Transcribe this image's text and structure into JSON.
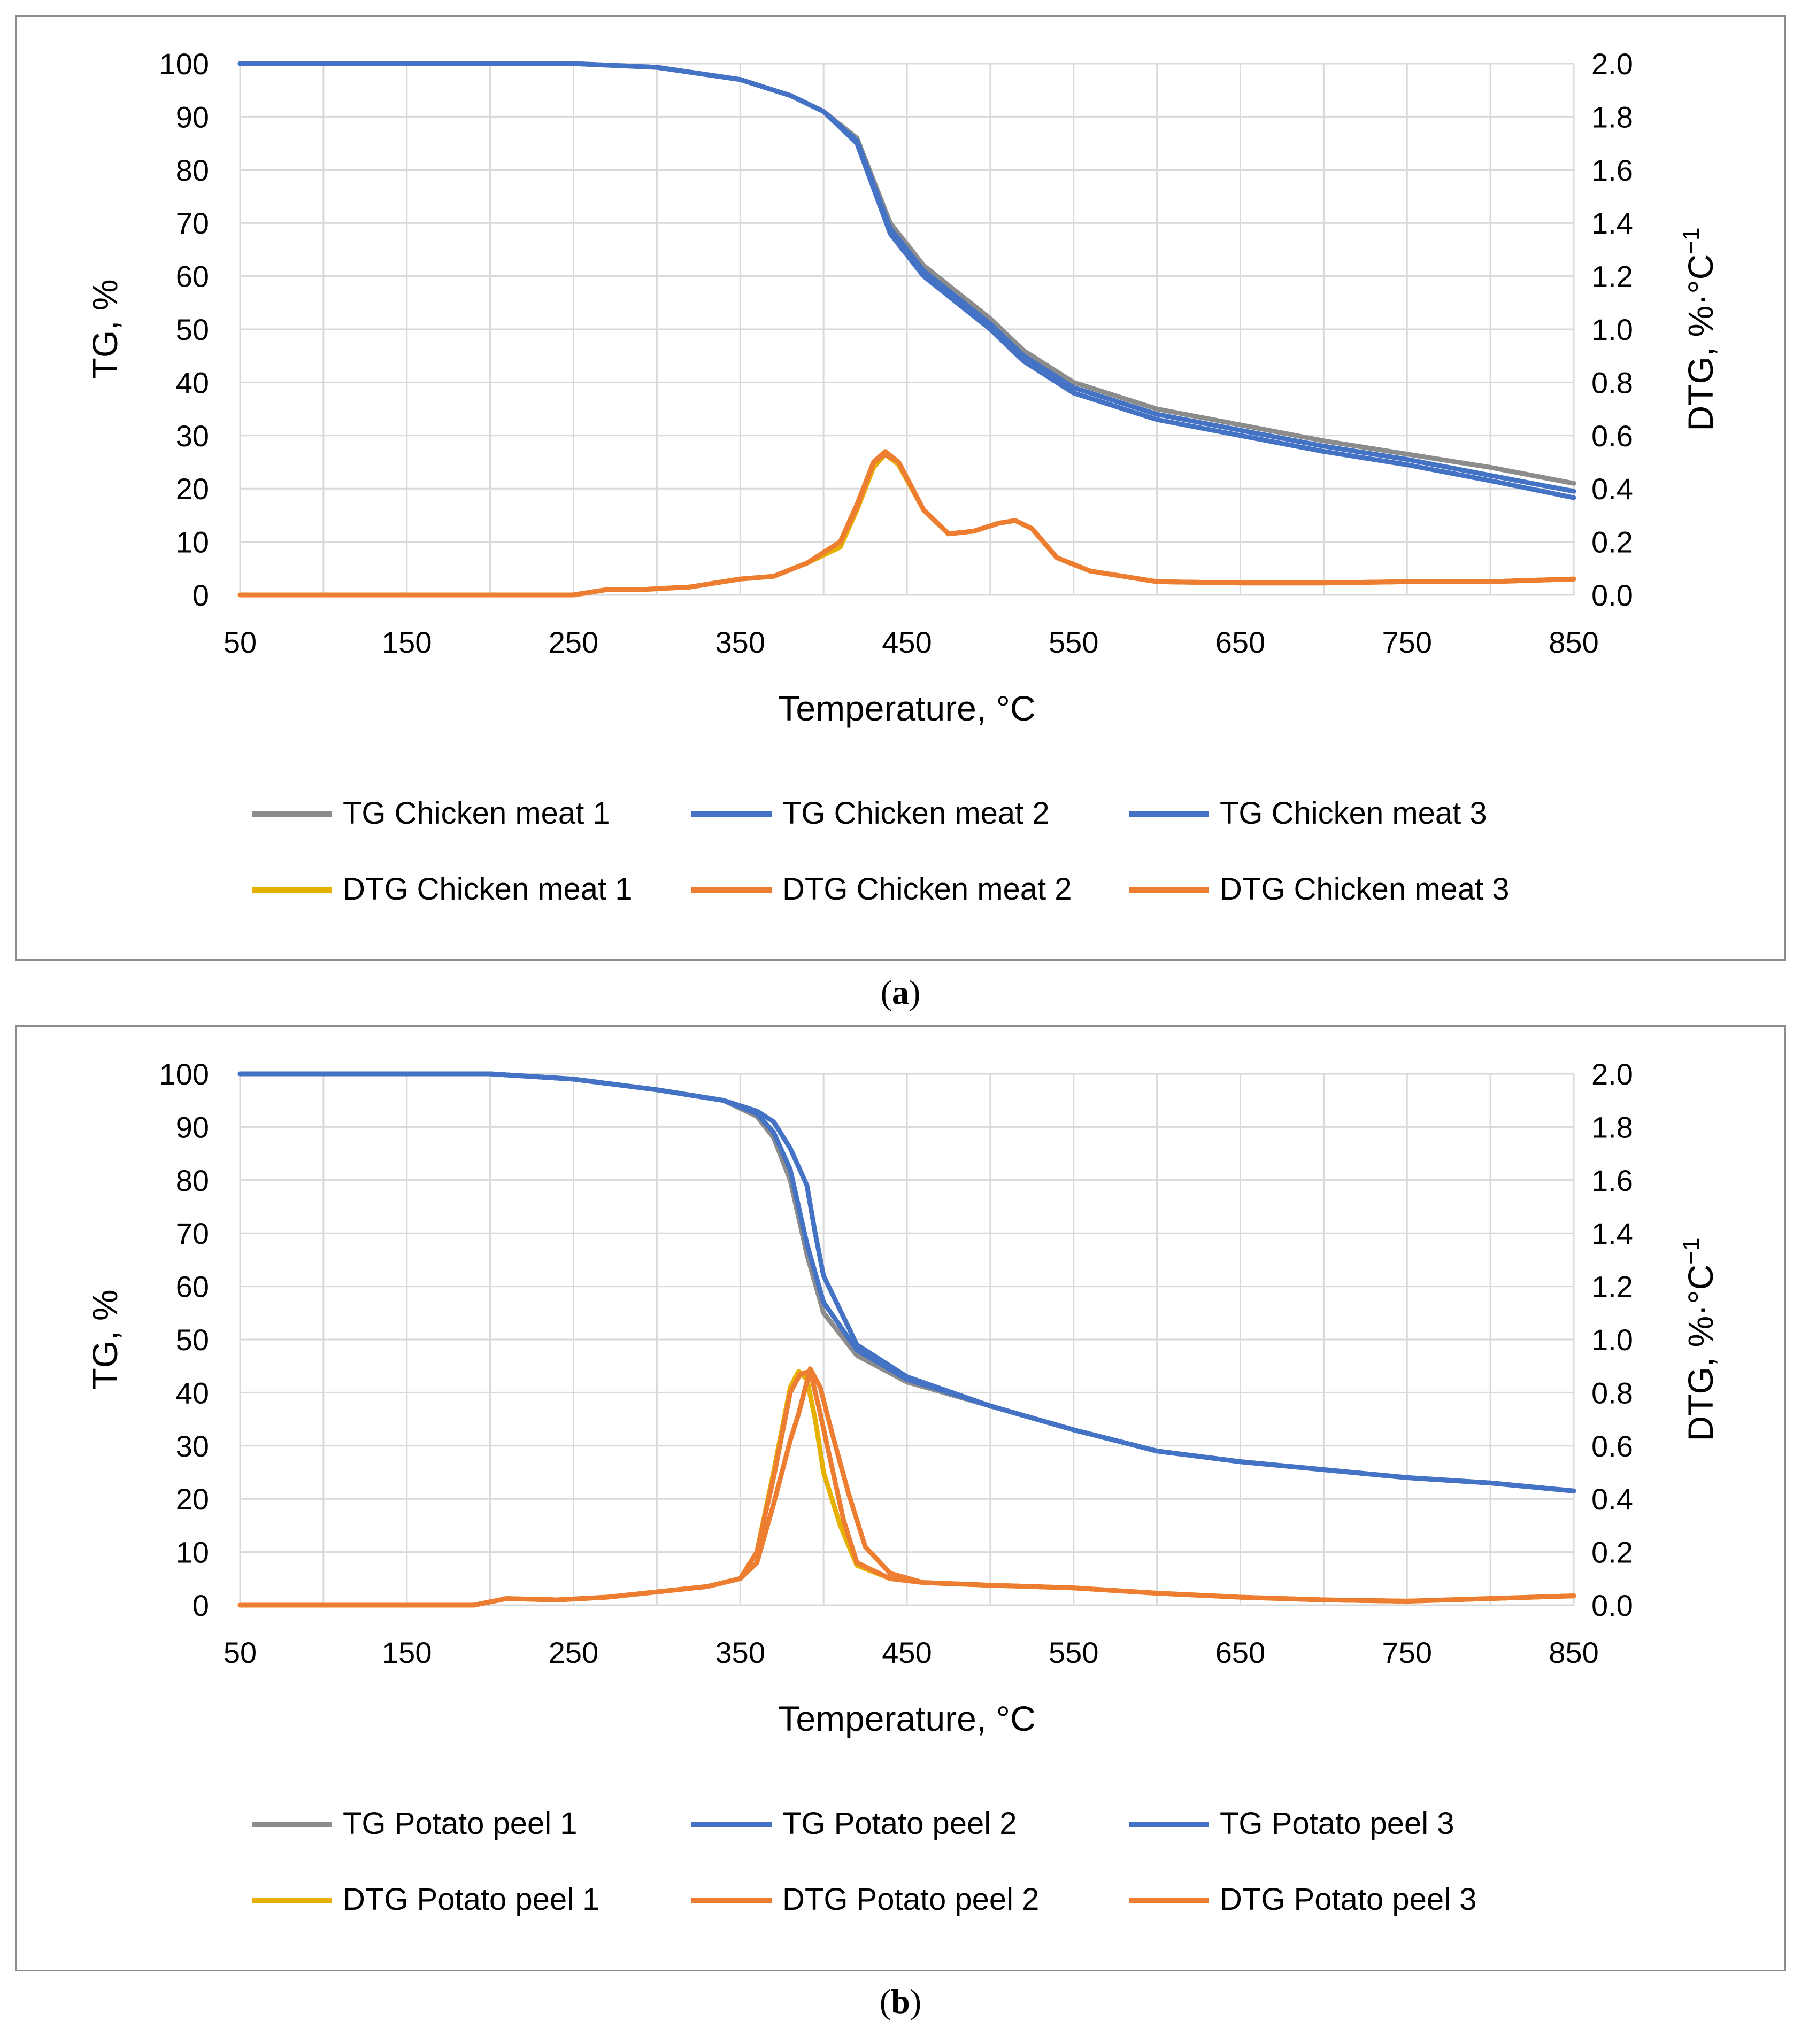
{
  "panels": [
    {
      "caption": "a",
      "chart_data": {
        "type": "line",
        "title": "",
        "xlabel": "Temperature, °C",
        "ylabel": "TG, %",
        "y2label": "DTG, %·°C",
        "y2label_sup": "−1",
        "xlim": [
          50,
          850
        ],
        "ylim": [
          0,
          100
        ],
        "y2lim": [
          0,
          2.0
        ],
        "x_ticks": [
          "50",
          "150",
          "250",
          "350",
          "450",
          "550",
          "650",
          "750",
          "850"
        ],
        "y_ticks": [
          "0",
          "10",
          "20",
          "30",
          "40",
          "50",
          "60",
          "70",
          "80",
          "90",
          "100"
        ],
        "y2_ticks": [
          "0.0",
          "0.2",
          "0.4",
          "0.6",
          "0.8",
          "1.0",
          "1.2",
          "1.4",
          "1.6",
          "1.8",
          "2.0"
        ],
        "grid": true,
        "legend_position": "bottom",
        "series": [
          {
            "name": "TG Chicken meat 1",
            "axis": "left",
            "color": "#8c8c8c",
            "x": [
              50,
              250,
              300,
              350,
              380,
              400,
              420,
              440,
              460,
              480,
              500,
              520,
              550,
              600,
              650,
              700,
              750,
              800,
              850
            ],
            "y": [
              100,
              100,
              99.3,
              97,
              94,
              91,
              86,
              70,
              62,
              57,
              52,
              46,
              40,
              35,
              32,
              29,
              26.5,
              24,
              21
            ]
          },
          {
            "name": "TG Chicken meat 2",
            "axis": "left",
            "color": "#4472c4",
            "x": [
              50,
              250,
              300,
              350,
              380,
              400,
              420,
              440,
              460,
              480,
              500,
              520,
              550,
              600,
              650,
              700,
              750,
              800,
              850
            ],
            "y": [
              100,
              100,
              99.3,
              97,
              94,
              91,
              85.5,
              69,
              61,
              56,
              51,
              45,
              39,
              34,
              31,
              28,
              25.5,
              22.5,
              19.5
            ]
          },
          {
            "name": "TG Chicken meat 3",
            "axis": "left",
            "color": "#4472c4",
            "x": [
              50,
              250,
              300,
              350,
              380,
              400,
              420,
              440,
              460,
              480,
              500,
              520,
              550,
              600,
              650,
              700,
              750,
              800,
              850
            ],
            "y": [
              100,
              100,
              99.3,
              97,
              94,
              91,
              85,
              68,
              60,
              55,
              50,
              44,
              38,
              33,
              30,
              27,
              24.5,
              21.5,
              18.3
            ]
          },
          {
            "name": "DTG Chicken meat 1",
            "axis": "right",
            "color": "#e6b000",
            "x": [
              50,
              250,
              270,
              290,
              320,
              350,
              370,
              390,
              410,
              420,
              430,
              437,
              445,
              460,
              475,
              490,
              505,
              515,
              525,
              540,
              560,
              600,
              650,
              700,
              750,
              800,
              850
            ],
            "y": [
              0,
              0,
              0.02,
              0.02,
              0.03,
              0.06,
              0.07,
              0.12,
              0.18,
              0.32,
              0.48,
              0.53,
              0.49,
              0.32,
              0.23,
              0.24,
              0.27,
              0.28,
              0.25,
              0.14,
              0.09,
              0.05,
              0.045,
              0.045,
              0.05,
              0.05,
              0.06
            ]
          },
          {
            "name": "DTG Chicken meat 2",
            "axis": "right",
            "color": "#ed7d31",
            "x": [
              50,
              250,
              270,
              290,
              320,
              350,
              370,
              390,
              410,
              420,
              430,
              437,
              445,
              460,
              475,
              490,
              505,
              515,
              525,
              540,
              560,
              600,
              650,
              700,
              750,
              800,
              850
            ],
            "y": [
              0,
              0,
              0.02,
              0.02,
              0.03,
              0.06,
              0.07,
              0.12,
              0.2,
              0.34,
              0.5,
              0.54,
              0.5,
              0.32,
              0.23,
              0.24,
              0.27,
              0.28,
              0.25,
              0.14,
              0.09,
              0.05,
              0.045,
              0.045,
              0.05,
              0.05,
              0.06
            ]
          },
          {
            "name": "DTG Chicken meat 3",
            "axis": "right",
            "color": "#ed7d31",
            "x": [
              50,
              250,
              270,
              290,
              320,
              350,
              370,
              390,
              410,
              420,
              430,
              437,
              445,
              460,
              475,
              490,
              505,
              515,
              525,
              540,
              560,
              600,
              650,
              700,
              750,
              800,
              850
            ],
            "y": [
              0,
              0,
              0.02,
              0.02,
              0.03,
              0.06,
              0.07,
              0.12,
              0.2,
              0.33,
              0.5,
              0.53,
              0.5,
              0.32,
              0.23,
              0.24,
              0.27,
              0.28,
              0.25,
              0.14,
              0.09,
              0.05,
              0.045,
              0.045,
              0.05,
              0.05,
              0.06
            ]
          }
        ]
      }
    },
    {
      "caption": "b",
      "chart_data": {
        "type": "line",
        "title": "",
        "xlabel": "Temperature, °C",
        "ylabel": "TG, %",
        "y2label": "DTG, %·°C",
        "y2label_sup": "−1",
        "xlim": [
          50,
          850
        ],
        "ylim": [
          0,
          100
        ],
        "y2lim": [
          0,
          2.0
        ],
        "x_ticks": [
          "50",
          "150",
          "250",
          "350",
          "450",
          "550",
          "650",
          "750",
          "850"
        ],
        "y_ticks": [
          "0",
          "10",
          "20",
          "30",
          "40",
          "50",
          "60",
          "70",
          "80",
          "90",
          "100"
        ],
        "y2_ticks": [
          "0.0",
          "0.2",
          "0.4",
          "0.6",
          "0.8",
          "1.0",
          "1.2",
          "1.4",
          "1.6",
          "1.8",
          "2.0"
        ],
        "grid": true,
        "legend_position": "bottom",
        "series": [
          {
            "name": "TG Potato peel 1",
            "axis": "left",
            "color": "#8c8c8c",
            "x": [
              50,
              200,
              250,
              300,
              340,
              360,
              370,
              380,
              390,
              400,
              420,
              450,
              500,
              550,
              600,
              650,
              700,
              750,
              800,
              850
            ],
            "y": [
              100,
              100,
              99,
              97,
              95,
              92,
              88,
              80,
              66,
              55,
              47,
              42,
              37.5,
              33,
              29,
              27,
              25.5,
              24,
              23,
              21.5
            ]
          },
          {
            "name": "TG Potato peel 2",
            "axis": "left",
            "color": "#4472c4",
            "x": [
              50,
              200,
              250,
              300,
              340,
              360,
              370,
              380,
              390,
              395,
              400,
              420,
              450,
              500,
              550,
              600,
              650,
              700,
              750,
              800,
              850
            ],
            "y": [
              100,
              100,
              99,
              97,
              95,
              93,
              91,
              86,
              79,
              70,
              62,
              49,
              43,
              37.5,
              33,
              29,
              27,
              25.5,
              24,
              23,
              21.5
            ]
          },
          {
            "name": "TG Potato peel 3",
            "axis": "left",
            "color": "#4472c4",
            "x": [
              50,
              200,
              250,
              300,
              340,
              360,
              370,
              380,
              390,
              400,
              420,
              450,
              500,
              550,
              600,
              650,
              700,
              750,
              800,
              850
            ],
            "y": [
              100,
              100,
              99,
              97,
              95,
              92.5,
              89,
              82,
              68,
              57,
              48,
              42.5,
              37.5,
              33,
              29,
              27,
              25.5,
              24,
              23,
              21.5
            ]
          },
          {
            "name": "DTG Potato peel 1",
            "axis": "right",
            "color": "#e6b000",
            "x": [
              50,
              190,
              210,
              240,
              270,
              300,
              330,
              350,
              360,
              370,
              380,
              385,
              390,
              395,
              400,
              410,
              420,
              440,
              460,
              500,
              550,
              600,
              650,
              700,
              750,
              800,
              850
            ],
            "y": [
              0,
              0,
              0.025,
              0.02,
              0.03,
              0.05,
              0.07,
              0.1,
              0.2,
              0.5,
              0.82,
              0.88,
              0.85,
              0.7,
              0.5,
              0.3,
              0.15,
              0.1,
              0.085,
              0.075,
              0.065,
              0.045,
              0.03,
              0.02,
              0.015,
              0.025,
              0.035
            ]
          },
          {
            "name": "DTG Potato peel 2",
            "axis": "right",
            "color": "#ed7d31",
            "x": [
              50,
              190,
              210,
              240,
              270,
              300,
              330,
              350,
              360,
              370,
              380,
              385,
              392,
              398,
              405,
              415,
              425,
              440,
              460,
              500,
              550,
              600,
              650,
              700,
              750,
              800,
              850
            ],
            "y": [
              0,
              0,
              0.025,
              0.02,
              0.03,
              0.05,
              0.07,
              0.1,
              0.16,
              0.38,
              0.62,
              0.72,
              0.89,
              0.82,
              0.65,
              0.42,
              0.22,
              0.12,
              0.085,
              0.075,
              0.065,
              0.045,
              0.03,
              0.02,
              0.015,
              0.025,
              0.035
            ]
          },
          {
            "name": "DTG Potato peel 3",
            "axis": "right",
            "color": "#ed7d31",
            "x": [
              50,
              190,
              210,
              240,
              270,
              300,
              330,
              350,
              360,
              370,
              380,
              386,
              392,
              397,
              405,
              412,
              420,
              440,
              460,
              500,
              550,
              600,
              650,
              700,
              750,
              800,
              850
            ],
            "y": [
              0,
              0,
              0.025,
              0.02,
              0.03,
              0.05,
              0.07,
              0.1,
              0.2,
              0.48,
              0.8,
              0.87,
              0.88,
              0.75,
              0.52,
              0.32,
              0.16,
              0.1,
              0.085,
              0.075,
              0.065,
              0.045,
              0.03,
              0.02,
              0.015,
              0.025,
              0.035
            ]
          }
        ]
      }
    }
  ]
}
